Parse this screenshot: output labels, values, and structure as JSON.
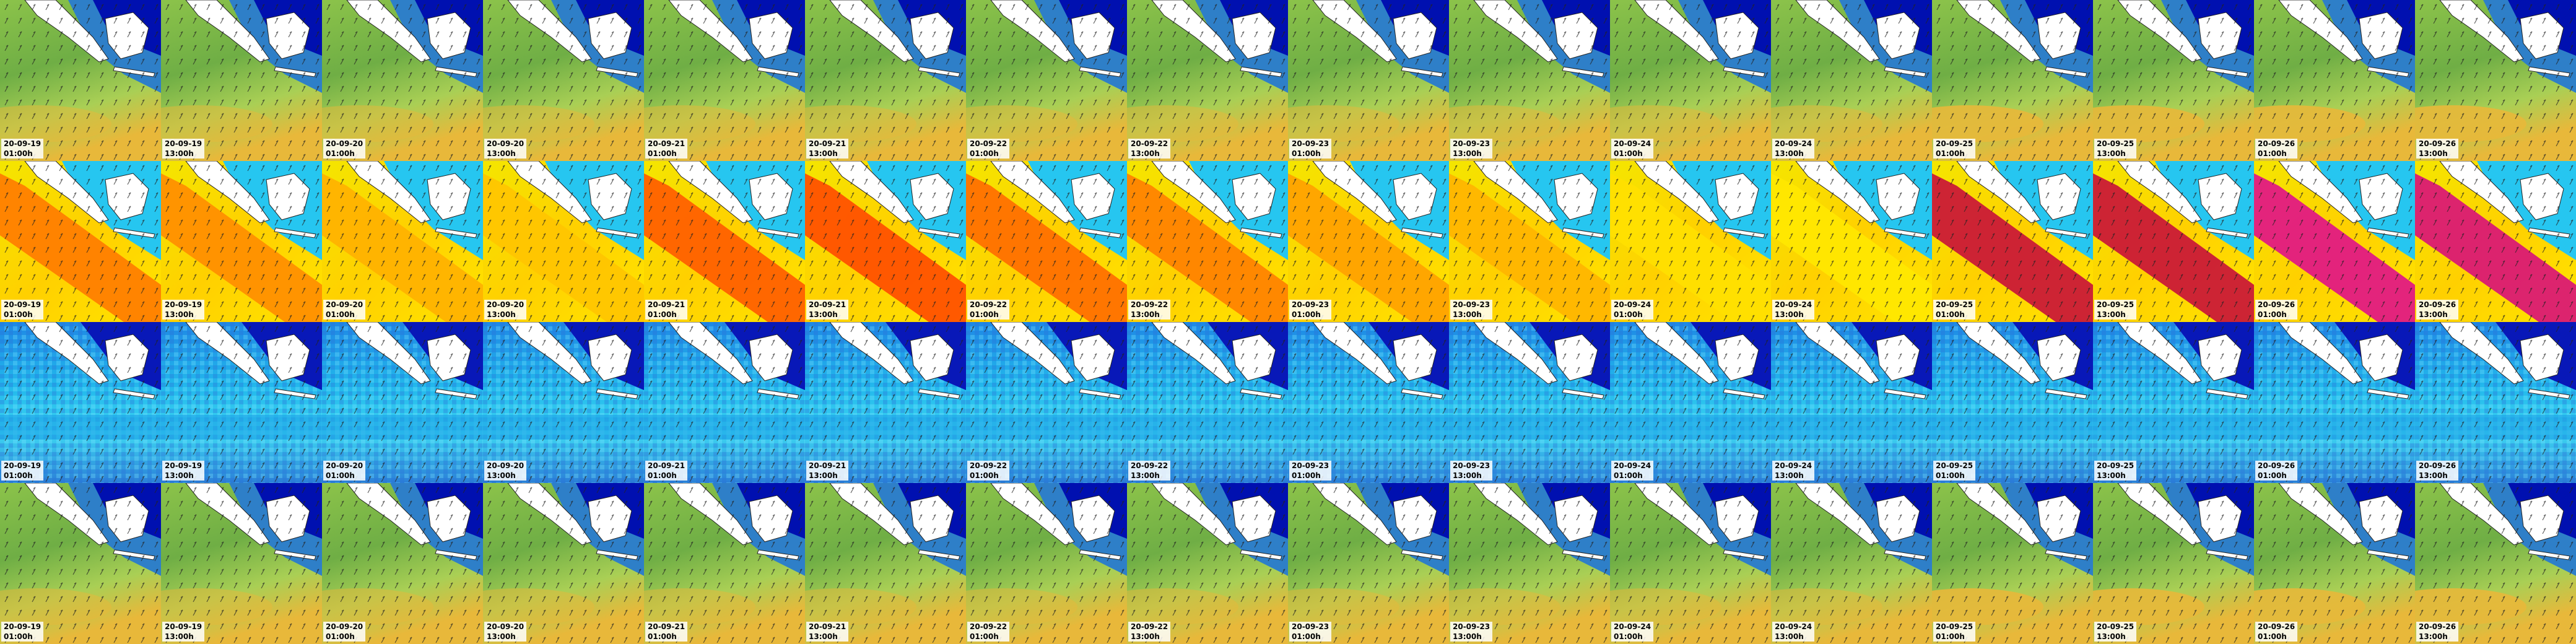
{
  "columns": [
    {
      "date": "20-09-19",
      "time": "01:00h"
    },
    {
      "date": "20-09-19",
      "time": "13:00h"
    },
    {
      "date": "20-09-20",
      "time": "01:00h"
    },
    {
      "date": "20-09-20",
      "time": "13:00h"
    },
    {
      "date": "20-09-21",
      "time": "01:00h"
    },
    {
      "date": "20-09-21",
      "time": "13:00h"
    },
    {
      "date": "20-09-22",
      "time": "01:00h"
    },
    {
      "date": "20-09-22",
      "time": "13:00h"
    },
    {
      "date": "20-09-23",
      "time": "01:00h"
    },
    {
      "date": "20-09-23",
      "time": "13:00h"
    },
    {
      "date": "20-09-24",
      "time": "01:00h"
    },
    {
      "date": "20-09-24",
      "time": "13:00h"
    },
    {
      "date": "20-09-25",
      "time": "01:00h"
    },
    {
      "date": "20-09-25",
      "time": "13:00h"
    },
    {
      "date": "20-09-26",
      "time": "01:00h"
    },
    {
      "date": "20-09-26",
      "time": "13:00h"
    }
  ]
}
